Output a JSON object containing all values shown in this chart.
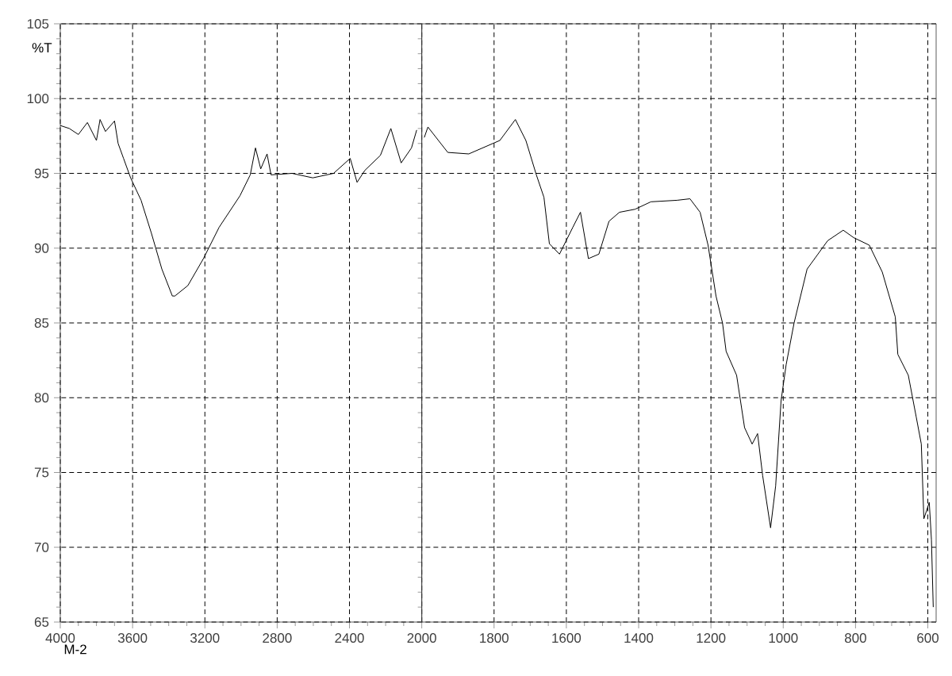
{
  "chart_data": [
    {
      "type": "line",
      "ylabel": "%T",
      "annotations": [
        "M-2"
      ],
      "x": [
        4000,
        3950,
        3900,
        3850,
        3800,
        3780,
        3750,
        3700,
        3680,
        3650,
        3620,
        3611,
        3553,
        3496,
        3438,
        3380,
        3366,
        3294,
        3208,
        3121,
        3006,
        2949,
        2920,
        2891,
        2856,
        2834,
        2718,
        2603,
        2488,
        2396,
        2358,
        2315,
        2229,
        2171,
        2114,
        2057,
        2028
      ],
      "values": [
        98.2,
        98.0,
        97.6,
        98.4,
        97.2,
        98.6,
        97.8,
        98.5,
        97.0,
        96.0,
        95.0,
        94.7,
        93.2,
        91.0,
        88.6,
        86.8,
        86.8,
        87.5,
        89.3,
        91.4,
        93.5,
        94.9,
        96.7,
        95.3,
        96.3,
        94.9,
        95.0,
        94.7,
        95.0,
        96.0,
        94.4,
        95.2,
        96.2,
        98.0,
        95.7,
        96.7,
        97.9
      ],
      "color": "#000000",
      "xlim": [
        4000,
        2000
      ],
      "xticks": [
        4000,
        3600,
        3200,
        2800,
        2400,
        2000
      ],
      "ylim": [
        65,
        105
      ],
      "yticks": [
        65,
        70,
        75,
        80,
        85,
        90,
        95,
        100,
        105
      ],
      "grid": true,
      "legend": false,
      "marker": "none",
      "line_style": "solid"
    },
    {
      "type": "line",
      "x": [
        1993,
        1983,
        1928,
        1870,
        1784,
        1741,
        1712,
        1683,
        1662,
        1647,
        1619,
        1582,
        1561,
        1539,
        1510,
        1482,
        1453,
        1410,
        1366,
        1294,
        1258,
        1230,
        1208,
        1186,
        1168,
        1158,
        1129,
        1107,
        1086,
        1071,
        1057,
        1035,
        1021,
        1006,
        992,
        970,
        934,
        877,
        834,
        805,
        762,
        726,
        690,
        683,
        654,
        632,
        618,
        611,
        596,
        590,
        585
      ],
      "values": [
        97.4,
        98.1,
        96.4,
        96.3,
        97.2,
        98.6,
        97.2,
        94.9,
        93.4,
        90.3,
        89.6,
        91.4,
        92.4,
        89.3,
        89.6,
        91.8,
        92.4,
        92.6,
        93.1,
        93.2,
        93.3,
        92.4,
        90.2,
        86.8,
        85.0,
        83.1,
        81.5,
        78.0,
        76.9,
        77.6,
        74.8,
        71.3,
        74.1,
        79.8,
        82.2,
        85.0,
        88.6,
        90.5,
        91.2,
        90.7,
        90.2,
        88.4,
        85.4,
        82.9,
        81.5,
        78.7,
        76.9,
        71.9,
        73.0,
        70.5,
        66.0
      ],
      "color": "#000000",
      "xlim": [
        2000,
        577
      ],
      "xticks": [
        1800,
        1600,
        1400,
        1200,
        1000,
        800,
        600
      ],
      "ylim": [
        65,
        105
      ],
      "yticks": [
        65,
        70,
        75,
        80,
        85,
        90,
        95,
        100,
        105
      ],
      "tick_labels": "x",
      "grid": true,
      "marker": "none",
      "line_style": "solid"
    }
  ]
}
